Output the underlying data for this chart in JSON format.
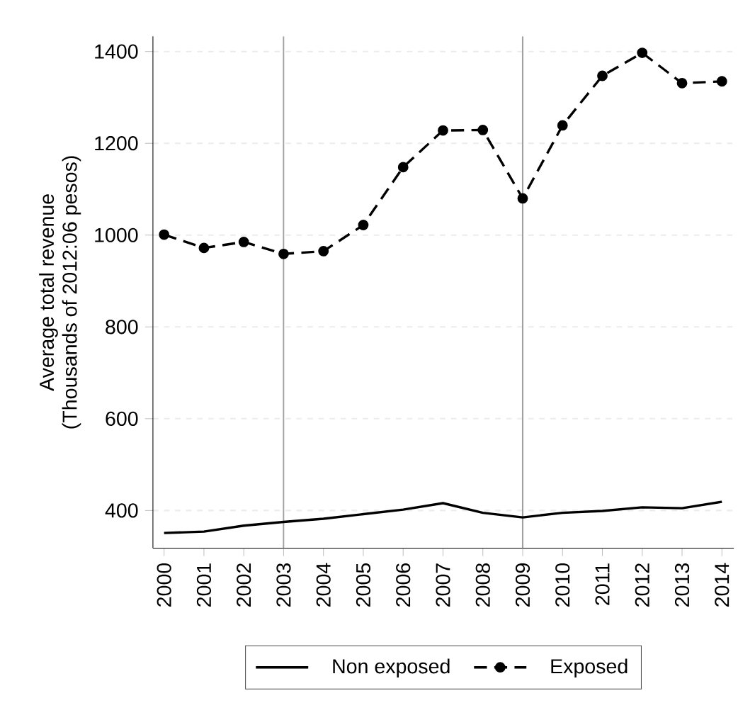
{
  "chart_data": {
    "type": "line",
    "ylabel": "Average total revenue\n(Thousands of 2012:06 pesos)",
    "x": [
      2000,
      2001,
      2002,
      2003,
      2004,
      2005,
      2006,
      2007,
      2008,
      2009,
      2010,
      2011,
      2012,
      2013,
      2014
    ],
    "series": [
      {
        "name": "Non exposed",
        "color": "#000000",
        "line_style": "solid",
        "marker": "none",
        "values": [
          351,
          354,
          367,
          375,
          382,
          392,
          402,
          416,
          395,
          385,
          395,
          399,
          407,
          405,
          419
        ]
      },
      {
        "name": "Exposed",
        "color": "#000000",
        "line_style": "dashed",
        "marker": "circle",
        "values": [
          1001,
          972,
          985,
          959,
          965,
          1022,
          1148,
          1228,
          1229,
          1080,
          1239,
          1347,
          1397,
          1331,
          1335
        ]
      }
    ],
    "xlim": [
      1999.72,
      2014.3
    ],
    "xticks": [
      2000,
      2001,
      2002,
      2003,
      2004,
      2005,
      2006,
      2007,
      2008,
      2009,
      2010,
      2011,
      2012,
      2013,
      2014
    ],
    "ylim": [
      318,
      1433
    ],
    "yticks": [
      400,
      600,
      800,
      1000,
      1200,
      1400
    ],
    "ref_lines": [
      {
        "axis": "x",
        "value": 2003,
        "color": "#a0a0a0"
      },
      {
        "axis": "x",
        "value": 2009,
        "color": "#a0a0a0"
      }
    ],
    "grid": "y",
    "legend": "bottom"
  }
}
